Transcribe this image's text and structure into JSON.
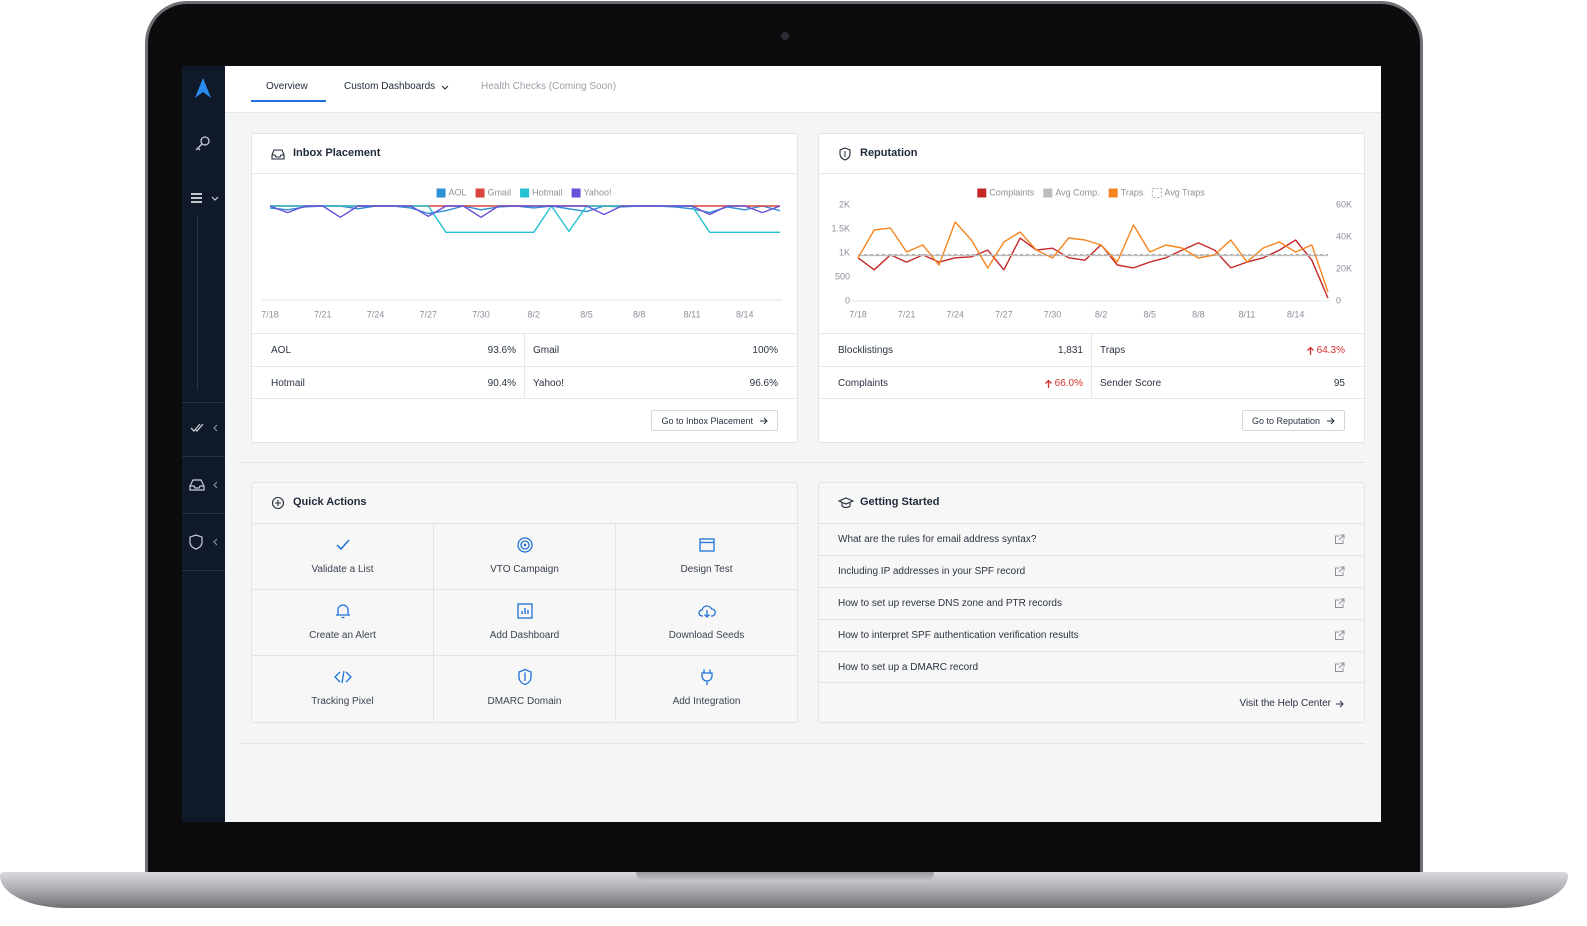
{
  "tabs": [
    "Overview",
    "Custom Dashboards",
    "Health Checks (Coming Soon)"
  ],
  "chart_data": [
    {
      "type": "line",
      "title": "Inbox Placement",
      "categories": [
        "7/18",
        null,
        null,
        "7/21",
        null,
        null,
        "7/24",
        null,
        null,
        "7/27",
        null,
        null,
        "7/30",
        null,
        null,
        "8/2",
        null,
        null,
        "8/5",
        null,
        null,
        "8/8",
        null,
        null,
        "8/11",
        null,
        null,
        "8/14",
        null,
        null
      ],
      "ylim": [
        0,
        100
      ],
      "series": [
        {
          "name": "AOL",
          "color": "#2d8fd5",
          "values": [
            98,
            96,
            99,
            100,
            100,
            97,
            100,
            100,
            98,
            92,
            95,
            100,
            96,
            99,
            100,
            98,
            100,
            97,
            94,
            100,
            99,
            100,
            100,
            99,
            97,
            93,
            99,
            96,
            100,
            95
          ]
        },
        {
          "name": "Gmail",
          "color": "#d9453d",
          "values": [
            100,
            100,
            100,
            100,
            100,
            100,
            100,
            100,
            100,
            100,
            100,
            100,
            100,
            100,
            100,
            100,
            100,
            100,
            100,
            100,
            100,
            100,
            100,
            100,
            100,
            100,
            100,
            100,
            100,
            100
          ]
        },
        {
          "name": "Hotmail",
          "color": "#26c0d3",
          "values": [
            100,
            100,
            100,
            100,
            100,
            100,
            100,
            100,
            100,
            100,
            72,
            72,
            72,
            72,
            72,
            72,
            100,
            73,
            100,
            100,
            100,
            100,
            100,
            100,
            100,
            72,
            72,
            72,
            72,
            72
          ]
        },
        {
          "name": "Yahoo!",
          "color": "#6a4fd8",
          "values": [
            100,
            93,
            100,
            100,
            88,
            100,
            100,
            100,
            100,
            89,
            100,
            100,
            88,
            100,
            100,
            100,
            100,
            100,
            100,
            91,
            100,
            100,
            100,
            100,
            100,
            91,
            100,
            100,
            93,
            100
          ]
        }
      ]
    },
    {
      "type": "line",
      "title": "Reputation",
      "categories": [
        "7/18",
        null,
        null,
        "7/21",
        null,
        null,
        "7/24",
        null,
        null,
        "7/27",
        null,
        null,
        "7/30",
        null,
        null,
        "8/2",
        null,
        null,
        "8/5",
        null,
        null,
        "8/8",
        null,
        null,
        "8/11",
        null,
        null,
        "8/14",
        null,
        null
      ],
      "ylim": [
        0,
        2000
      ],
      "yticks": [
        0,
        500,
        {
          "value": 1000,
          "label": "1K"
        },
        {
          "value": 1500,
          "label": "1.5K"
        },
        {
          "value": 2000,
          "label": "2K"
        }
      ],
      "y2lim": [
        0,
        60000
      ],
      "y2ticks": [
        0,
        {
          "value": 20000,
          "label": "20K"
        },
        {
          "value": 40000,
          "label": "40K"
        },
        {
          "value": 60000,
          "label": "60K"
        }
      ],
      "series": [
        {
          "name": "Complaints",
          "color": "#c62828",
          "values": [
            900,
            650,
            960,
            810,
            960,
            810,
            900,
            920,
            1060,
            650,
            1310,
            1060,
            1100,
            900,
            850,
            1170,
            750,
            690,
            810,
            900,
            1060,
            1210,
            1060,
            690,
            810,
            900,
            1060,
            1270,
            850,
            60
          ]
        },
        {
          "name": "Avg Comp.",
          "color": "#bdbdbd",
          "values": [
            950,
            950,
            950,
            950,
            950,
            950,
            950,
            950,
            950,
            950,
            950,
            950,
            950,
            950,
            950,
            950,
            950,
            950,
            950,
            950,
            950,
            950,
            950,
            950,
            950,
            950,
            950,
            950,
            950,
            950
          ]
        },
        {
          "name": "Traps",
          "color": "#f5861f",
          "axis": "y2",
          "values": [
            26900,
            44400,
            45600,
            30600,
            35000,
            22500,
            49400,
            38100,
            20600,
            36900,
            43100,
            31900,
            26900,
            39400,
            38100,
            35000,
            24400,
            47500,
            30600,
            35000,
            33100,
            26900,
            28800,
            38100,
            24400,
            33100,
            36900,
            30600,
            35000,
            5600
          ]
        },
        {
          "name": "Avg Traps",
          "color": "#a8a8a8",
          "axis": "y2",
          "dashed": true,
          "values": [
            29000,
            29000,
            29000,
            29000,
            29000,
            29000,
            29000,
            29000,
            29000,
            29000,
            29000,
            29000,
            29000,
            29000,
            29000,
            29000,
            29000,
            29000,
            29000,
            29000,
            29000,
            29000,
            29000,
            29000,
            29000,
            29000,
            29000,
            29000,
            29000,
            29000
          ]
        }
      ]
    }
  ],
  "inbox_stats": [
    {
      "label": "AOL",
      "value": "93.6%"
    },
    {
      "label": "Gmail",
      "value": "100%"
    },
    {
      "label": "Hotmail",
      "value": "90.4%"
    },
    {
      "label": "Yahoo!",
      "value": "96.6%"
    }
  ],
  "inbox_button": "Go to Inbox Placement",
  "reputation_stats": [
    {
      "label": "Blocklistings",
      "value": "1,831"
    },
    {
      "label": "Traps",
      "value": "64.3%",
      "trend": "up"
    },
    {
      "label": "Complaints",
      "value": "66.0%",
      "trend": "up"
    },
    {
      "label": "Sender Score",
      "value": "95"
    }
  ],
  "reputation_button": "Go to Reputation",
  "quick_actions": {
    "title": "Quick Actions",
    "items": [
      "Validate a List",
      "VTO Campaign",
      "Design Test",
      "Create an Alert",
      "Add Dashboard",
      "Download Seeds",
      "Tracking Pixel",
      "DMARC Domain",
      "Add Integration"
    ]
  },
  "getting_started": {
    "title": "Getting Started",
    "items": [
      "What are the rules for email address syntax?",
      "Including IP addresses in your SPF record",
      "How to set up reverse DNS zone and PTR records",
      "How to interpret SPF authentication verification results",
      "How to set up a DMARC record"
    ],
    "footer": "Visit the Help Center"
  }
}
